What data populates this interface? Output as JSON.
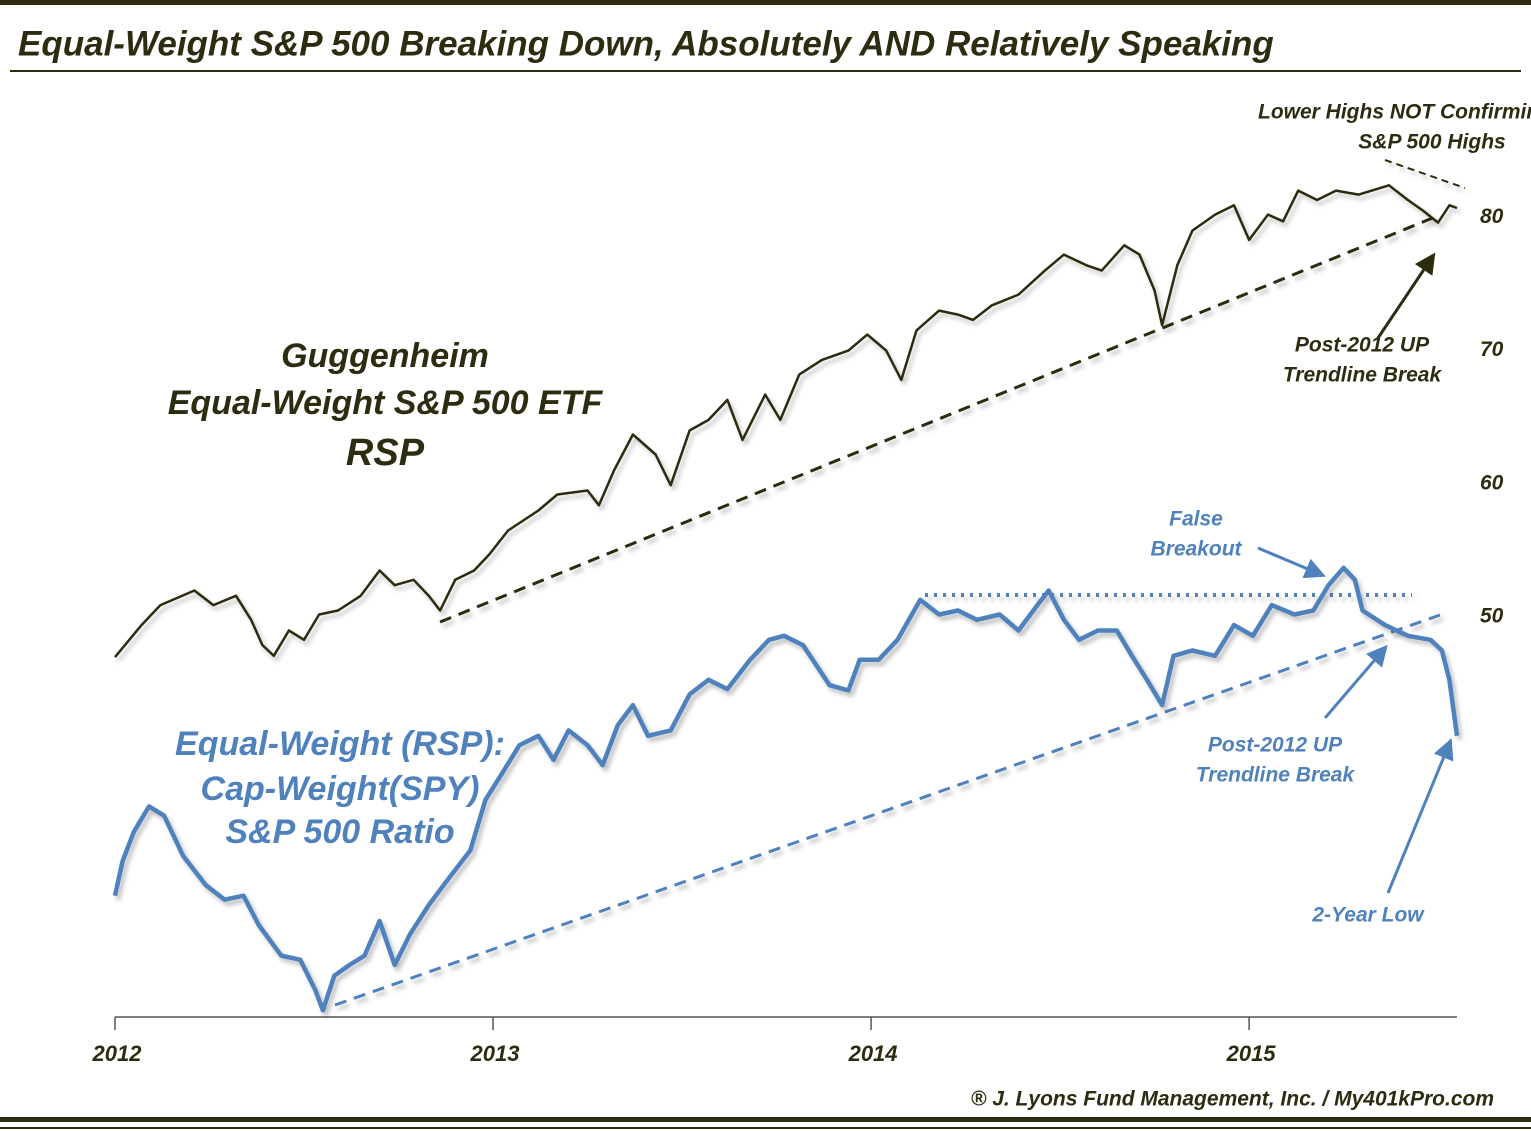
{
  "chart_data": {
    "type": "line",
    "title": "Equal-Weight S&P 500 Breaking Down, Absolutely AND Relatively Speaking",
    "credit": "® J. Lyons Fund Management, Inc. / My401kPro.com",
    "annotations": [
      "Lower Highs NOT Confirming",
      "S&P 500 Highs",
      "Post-2012 UP",
      "Trendline Break",
      "Guggenheim",
      "Equal-Weight S&P 500 ETF",
      "False",
      "Breakout",
      "Equal-Weight (RSP):",
      "Cap-Weight(SPY)",
      "Post-2012 UP",
      "Trendline Break",
      "2-Year Low"
    ],
    "xlim": [
      2012,
      2015.55
    ],
    "xticks": [
      2012,
      2013,
      2014,
      2015
    ],
    "ylim": [
      20,
      90
    ],
    "yticks": [
      50,
      60,
      70,
      80
    ],
    "grid": false,
    "series": [
      {
        "name": "RSP",
        "color": "#2d2c10",
        "x": [
          2012.0,
          2012.07,
          2012.12,
          2012.21,
          2012.26,
          2012.32,
          2012.36,
          2012.39,
          2012.42,
          2012.46,
          2012.5,
          2012.54,
          2012.59,
          2012.65,
          2012.7,
          2012.74,
          2012.79,
          2012.83,
          2012.86,
          2012.9,
          2012.95,
          2012.99,
          2013.04,
          2013.12,
          2013.17,
          2013.25,
          2013.28,
          2013.32,
          2013.37,
          2013.43,
          2013.47,
          2013.52,
          2013.57,
          2013.62,
          2013.66,
          2013.72,
          2013.76,
          2013.81,
          2013.87,
          2013.94,
          2013.99,
          2014.04,
          2014.08,
          2014.12,
          2014.18,
          2014.23,
          2014.27,
          2014.32,
          2014.39,
          2014.46,
          2014.51,
          2014.57,
          2014.61,
          2014.67,
          2014.71,
          2014.75,
          2014.77,
          2014.81,
          2014.85,
          2014.91,
          2014.96,
          2015.0,
          2015.05,
          2015.09,
          2015.13,
          2015.18,
          2015.23,
          2015.29,
          2015.37,
          2015.42,
          2015.46,
          2015.5,
          2015.53,
          2015.55
        ],
        "values": [
          47.0,
          49.4,
          50.9,
          52.0,
          50.9,
          51.6,
          49.8,
          47.9,
          47.1,
          49.0,
          48.3,
          50.2,
          50.5,
          51.6,
          53.5,
          52.4,
          52.8,
          51.6,
          50.5,
          52.8,
          53.5,
          54.7,
          56.5,
          58.0,
          59.2,
          59.5,
          58.4,
          61.0,
          63.7,
          62.2,
          59.9,
          64.0,
          64.8,
          66.3,
          63.3,
          66.7,
          64.8,
          68.2,
          69.3,
          70.0,
          71.2,
          70.0,
          67.8,
          71.5,
          73.0,
          72.7,
          72.3,
          73.4,
          74.2,
          76.0,
          77.2,
          76.4,
          76.0,
          77.9,
          77.2,
          74.5,
          71.9,
          76.4,
          79.0,
          80.2,
          80.9,
          78.3,
          80.2,
          79.7,
          82.0,
          81.3,
          82.0,
          81.7,
          82.4,
          81.3,
          80.5,
          79.6,
          80.9,
          80.7
        ]
      },
      {
        "name": "S&P 500 Ratio",
        "color": "#4f81bd",
        "x": [
          2012.0,
          2012.02,
          2012.05,
          2012.09,
          2012.13,
          2012.18,
          2012.24,
          2012.29,
          2012.34,
          2012.38,
          2012.44,
          2012.49,
          2012.53,
          2012.55,
          2012.58,
          2012.62,
          2012.66,
          2012.7,
          2012.74,
          2012.78,
          2012.83,
          2012.88,
          2012.94,
          2012.98,
          2013.02,
          2013.07,
          2013.12,
          2013.16,
          2013.2,
          2013.25,
          2013.29,
          2013.33,
          2013.37,
          2013.41,
          2013.47,
          2013.52,
          2013.57,
          2013.62,
          2013.68,
          2013.73,
          2013.77,
          2013.82,
          2013.89,
          2013.94,
          2013.97,
          2014.02,
          2014.07,
          2014.13,
          2014.18,
          2014.23,
          2014.28,
          2014.34,
          2014.39,
          2014.44,
          2014.47,
          2014.51,
          2014.55,
          2014.6,
          2014.65,
          2014.69,
          2014.73,
          2014.77,
          2014.8,
          2014.85,
          2014.91,
          2014.96,
          2015.01,
          2015.06,
          2015.12,
          2015.17,
          2015.21,
          2015.25,
          2015.28,
          2015.3,
          2015.36,
          2015.42,
          2015.48,
          2015.51,
          2015.53,
          2015.55
        ],
        "values": [
          29.1,
          31.7,
          33.9,
          35.8,
          35.1,
          32.1,
          29.9,
          28.8,
          29.1,
          26.9,
          24.6,
          24.3,
          22.0,
          20.5,
          23.1,
          23.9,
          24.6,
          27.2,
          23.9,
          26.2,
          28.4,
          30.3,
          32.5,
          36.3,
          38.1,
          40.4,
          41.1,
          39.3,
          41.5,
          40.4,
          38.9,
          41.9,
          43.4,
          41.1,
          41.5,
          44.2,
          45.3,
          44.6,
          46.8,
          48.3,
          48.6,
          47.9,
          44.9,
          44.5,
          46.8,
          46.8,
          48.3,
          51.3,
          50.2,
          50.5,
          49.8,
          50.2,
          49.0,
          50.9,
          52.0,
          49.8,
          48.3,
          49.0,
          49.0,
          47.1,
          45.3,
          43.4,
          47.1,
          47.5,
          47.1,
          49.4,
          48.6,
          50.9,
          50.2,
          50.5,
          52.4,
          53.7,
          52.8,
          50.5,
          49.4,
          48.6,
          48.3,
          47.5,
          45.3,
          41.1
        ]
      }
    ]
  }
}
